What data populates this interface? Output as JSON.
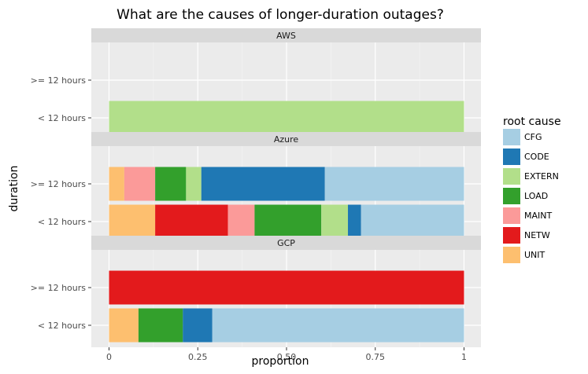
{
  "chart_data": {
    "type": "bar",
    "orientation": "horizontal",
    "stacked": true,
    "title": "What are the causes of longer-duration outages?",
    "xlabel": "proportion",
    "ylabel": "duration",
    "xlim": [
      0,
      1
    ],
    "x_ticks": [
      "0",
      "0.25",
      "0.50",
      "0.75",
      "1"
    ],
    "categories": [
      ">= 12 hours",
      "< 12 hours"
    ],
    "legend": {
      "title": "root cause",
      "position": "right",
      "entries": [
        {
          "name": "CFG",
          "color": "#a6cee3"
        },
        {
          "name": "CODE",
          "color": "#1f78b4"
        },
        {
          "name": "EXTERN",
          "color": "#b2df8a"
        },
        {
          "name": "LOAD",
          "color": "#33a02c"
        },
        {
          "name": "MAINT",
          "color": "#fb9a99"
        },
        {
          "name": "NETW",
          "color": "#e31a1c"
        },
        {
          "name": "UNIT",
          "color": "#fdbf6f"
        }
      ]
    },
    "panels": [
      {
        "name": "AWS",
        "bars": [
          {
            "category": ">= 12 hours",
            "segments": []
          },
          {
            "category": "< 12 hours",
            "segments": [
              {
                "cause": "EXTERN",
                "value": 1.0
              }
            ]
          }
        ]
      },
      {
        "name": "Azure",
        "bars": [
          {
            "category": ">= 12 hours",
            "segments": [
              {
                "cause": "UNIT",
                "value": 0.043
              },
              {
                "cause": "MAINT",
                "value": 0.087
              },
              {
                "cause": "LOAD",
                "value": 0.087
              },
              {
                "cause": "EXTERN",
                "value": 0.043
              },
              {
                "cause": "CODE",
                "value": 0.348
              },
              {
                "cause": "CFG",
                "value": 0.392
              }
            ]
          },
          {
            "category": "< 12 hours",
            "segments": [
              {
                "cause": "UNIT",
                "value": 0.13
              },
              {
                "cause": "NETW",
                "value": 0.205
              },
              {
                "cause": "MAINT",
                "value": 0.075
              },
              {
                "cause": "LOAD",
                "value": 0.188
              },
              {
                "cause": "EXTERN",
                "value": 0.075
              },
              {
                "cause": "CODE",
                "value": 0.037
              },
              {
                "cause": "CFG",
                "value": 0.29
              }
            ]
          }
        ]
      },
      {
        "name": "GCP",
        "bars": [
          {
            "category": ">= 12 hours",
            "segments": [
              {
                "cause": "NETW",
                "value": 1.0
              }
            ]
          },
          {
            "category": "< 12 hours",
            "segments": [
              {
                "cause": "UNIT",
                "value": 0.083
              },
              {
                "cause": "LOAD",
                "value": 0.125
              },
              {
                "cause": "CODE",
                "value": 0.083
              },
              {
                "cause": "CFG",
                "value": 0.709
              }
            ]
          }
        ]
      }
    ]
  }
}
